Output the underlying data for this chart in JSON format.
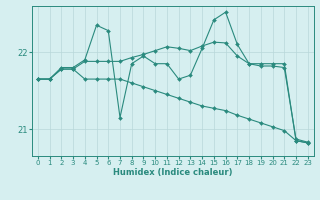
{
  "xlabel": "Humidex (Indice chaleur)",
  "bg_color": "#d6eff0",
  "grid_color": "#b8d8da",
  "line_color": "#2a8a7e",
  "ylim": [
    20.65,
    22.6
  ],
  "xlim": [
    -0.5,
    23.5
  ],
  "yticks": [
    21,
    22
  ],
  "xticks": [
    0,
    1,
    2,
    3,
    4,
    5,
    6,
    7,
    8,
    9,
    10,
    11,
    12,
    13,
    14,
    15,
    16,
    17,
    18,
    19,
    20,
    21,
    22,
    23
  ],
  "s1": [
    21.65,
    21.65,
    21.8,
    21.8,
    21.9,
    22.35,
    22.28,
    21.15,
    21.85,
    21.95,
    21.85,
    21.85,
    21.65,
    21.7,
    22.05,
    22.42,
    22.52,
    22.1,
    21.85,
    21.85,
    21.85,
    21.85,
    20.85,
    20.82
  ],
  "s2": [
    21.65,
    21.65,
    21.78,
    21.78,
    21.88,
    21.88,
    21.88,
    21.88,
    21.93,
    21.97,
    22.02,
    22.07,
    22.05,
    22.02,
    22.08,
    22.13,
    22.12,
    21.95,
    21.85,
    21.82,
    21.82,
    21.8,
    20.87,
    20.83
  ],
  "s3": [
    21.65,
    21.65,
    21.78,
    21.78,
    21.65,
    21.65,
    21.65,
    21.65,
    21.6,
    21.55,
    21.5,
    21.45,
    21.4,
    21.35,
    21.3,
    21.27,
    21.24,
    21.18,
    21.13,
    21.08,
    21.03,
    20.98,
    20.85,
    20.82
  ]
}
